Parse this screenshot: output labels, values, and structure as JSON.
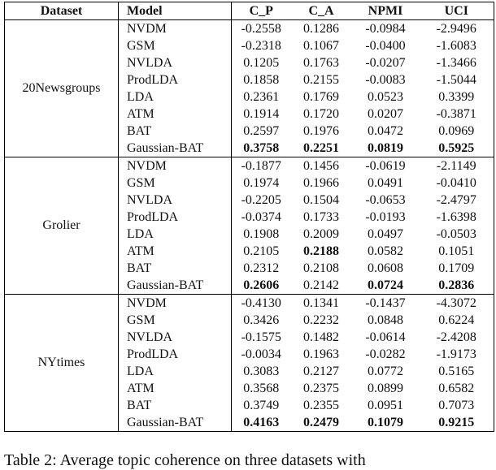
{
  "table": {
    "header": [
      "Dataset",
      "Model",
      "C_P",
      "C_A",
      "NPMI",
      "UCI"
    ],
    "groups": [
      {
        "dataset": "20Newsgroups",
        "rows": [
          [
            "NVDM",
            "-0.2558",
            "0.1286",
            "-0.0984",
            "-2.9496"
          ],
          [
            "GSM",
            "-0.2318",
            "0.1067",
            "-0.0400",
            "-1.6083"
          ],
          [
            "NVLDA",
            "0.1205",
            "0.1763",
            "-0.0207",
            "-1.3466"
          ],
          [
            "ProdLDA",
            "0.1858",
            "0.2155",
            "-0.0083",
            "-1.5044"
          ],
          [
            "LDA",
            "0.2361",
            "0.1769",
            "0.0523",
            "0.3399"
          ],
          [
            "ATM",
            "0.1914",
            "0.1720",
            "0.0207",
            "-0.3871"
          ],
          [
            "BAT",
            "0.2597",
            "0.1976",
            "0.0472",
            "0.0969"
          ],
          [
            "Gaussian-BAT",
            "0.3758",
            "0.2251",
            "0.0819",
            "0.5925"
          ]
        ],
        "bold": [
          [
            7,
            1
          ],
          [
            7,
            2
          ],
          [
            7,
            3
          ],
          [
            7,
            4
          ]
        ]
      },
      {
        "dataset": "Grolier",
        "rows": [
          [
            "NVDM",
            "-0.1877",
            "0.1456",
            "-0.0619",
            "-2.1149"
          ],
          [
            "GSM",
            "0.1974",
            "0.1966",
            "0.0491",
            "-0.0410"
          ],
          [
            "NVLDA",
            "-0.2205",
            "0.1504",
            "-0.0653",
            "-2.4797"
          ],
          [
            "ProdLDA",
            "-0.0374",
            "0.1733",
            "-0.0193",
            "-1.6398"
          ],
          [
            "LDA",
            "0.1908",
            "0.2009",
            "0.0497",
            "-0.0503"
          ],
          [
            "ATM",
            "0.2105",
            "0.2188",
            "0.0582",
            "0.1051"
          ],
          [
            "BAT",
            "0.2312",
            "0.2108",
            "0.0608",
            "0.1709"
          ],
          [
            "Gaussian-BAT",
            "0.2606",
            "0.2142",
            "0.0724",
            "0.2836"
          ]
        ],
        "bold": [
          [
            5,
            2
          ],
          [
            7,
            1
          ],
          [
            7,
            3
          ],
          [
            7,
            4
          ]
        ]
      },
      {
        "dataset": "NYtimes",
        "rows": [
          [
            "NVDM",
            "-0.4130",
            "0.1341",
            "-0.1437",
            "-4.3072"
          ],
          [
            "GSM",
            "0.3426",
            "0.2232",
            "0.0848",
            "0.6224"
          ],
          [
            "NVLDA",
            "-0.1575",
            "0.1482",
            "-0.0614",
            "-2.4208"
          ],
          [
            "ProdLDA",
            "-0.0034",
            "0.1963",
            "-0.0282",
            "-1.9173"
          ],
          [
            "LDA",
            "0.3083",
            "0.2127",
            "0.0772",
            "0.5165"
          ],
          [
            "ATM",
            "0.3568",
            "0.2375",
            "0.0899",
            "0.6582"
          ],
          [
            "BAT",
            "0.3749",
            "0.2355",
            "0.0951",
            "0.7073"
          ],
          [
            "Gaussian-BAT",
            "0.4163",
            "0.2479",
            "0.1079",
            "0.9215"
          ]
        ],
        "bold": [
          [
            7,
            1
          ],
          [
            7,
            2
          ],
          [
            7,
            3
          ],
          [
            7,
            4
          ]
        ]
      }
    ]
  },
  "caption": "Table 2: Average topic coherence on three datasets with"
}
